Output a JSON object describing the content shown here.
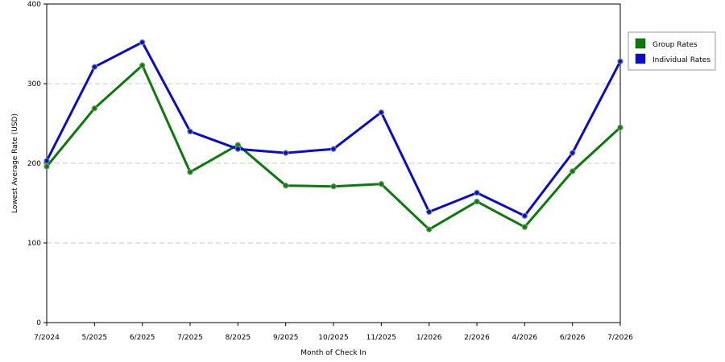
{
  "chart_data": {
    "type": "line",
    "categories": [
      "7/2024",
      "5/2025",
      "6/2025",
      "7/2025",
      "8/2025",
      "9/2025",
      "10/2025",
      "11/2025",
      "1/2026",
      "2/2026",
      "4/2026",
      "6/2026",
      "7/2026"
    ],
    "series": [
      {
        "name": "Group Rates",
        "color": "#0a7a0a",
        "values": [
          196,
          269,
          323,
          189,
          223,
          172,
          171,
          174,
          117,
          152,
          120,
          190,
          245
        ]
      },
      {
        "name": "Individual Rates",
        "color": "#0b0bd0",
        "values": [
          203,
          321,
          352,
          240,
          218,
          213,
          218,
          264,
          139,
          163,
          134,
          213,
          328
        ]
      }
    ],
    "xlabel": "Month of Check In",
    "ylabel": "Lowest Average Rate (USD)",
    "ylim": [
      0,
      400
    ],
    "yticks": [
      0,
      100,
      200,
      300,
      400
    ],
    "grid": "horizontal-dashed",
    "legend_position": "right"
  }
}
